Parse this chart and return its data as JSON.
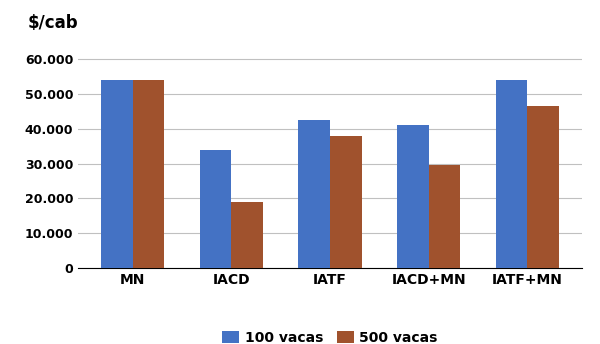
{
  "categories": [
    "MN",
    "IACD",
    "IATF",
    "IACD+MN",
    "IATF+MN"
  ],
  "series": {
    "100 vacas": [
      54000,
      34000,
      42500,
      41000,
      54000
    ],
    "500 vacas": [
      54000,
      19000,
      38000,
      29500,
      46500
    ]
  },
  "bar_colors": {
    "100 vacas": "#4472C4",
    "500 vacas": "#A0522D"
  },
  "ylabel_text": "$/cab",
  "ylim": [
    0,
    65000
  ],
  "yticks": [
    0,
    10000,
    20000,
    30000,
    40000,
    50000,
    60000
  ],
  "background_color": "#FFFFFF",
  "grid_color": "#C0C0C0",
  "bar_width": 0.32
}
